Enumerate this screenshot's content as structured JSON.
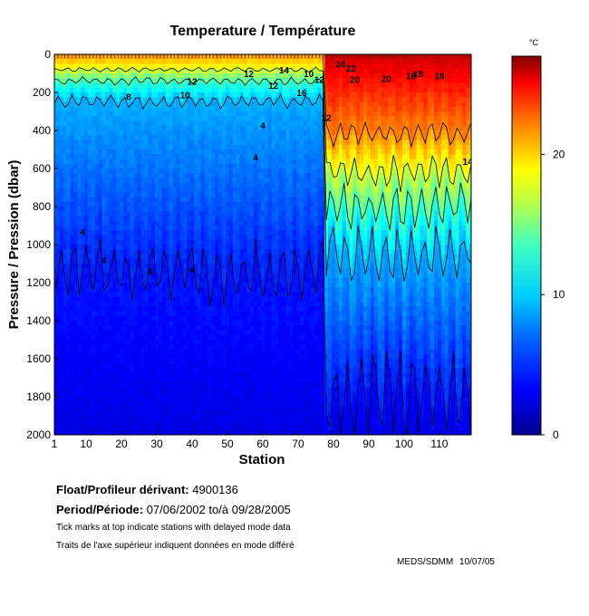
{
  "chart_data": {
    "type": "heatmap",
    "title": "Temperature / Température",
    "xlabel": "Station",
    "ylabel": "Pressure / Pression (dbar)",
    "xlim": [
      1,
      119
    ],
    "ylim": [
      2000,
      0
    ],
    "x_ticks": [
      1,
      10,
      20,
      30,
      40,
      50,
      60,
      70,
      80,
      90,
      100,
      110
    ],
    "y_ticks": [
      0,
      200,
      400,
      600,
      800,
      1000,
      1200,
      1400,
      1600,
      1800,
      2000
    ],
    "colorbar": {
      "unit": "°C",
      "range": [
        0,
        27
      ],
      "ticks": [
        0,
        10,
        20
      ],
      "colormap": [
        "#00008f",
        "#0000ff",
        "#0080ff",
        "#00ffff",
        "#80ff80",
        "#ffff00",
        "#ff8000",
        "#ff0000",
        "#800000"
      ]
    },
    "contour_labels": [
      {
        "text": "4",
        "station": 9,
        "pressure": 950
      },
      {
        "text": "4",
        "station": 15,
        "pressure": 1100
      },
      {
        "text": "4",
        "station": 28,
        "pressure": 1160
      },
      {
        "text": "4",
        "station": 40,
        "pressure": 1150
      },
      {
        "text": "4",
        "station": 58,
        "pressure": 560
      },
      {
        "text": "4",
        "station": 60,
        "pressure": 390
      },
      {
        "text": "8",
        "station": 22,
        "pressure": 240
      },
      {
        "text": "10",
        "station": 38,
        "pressure": 230
      },
      {
        "text": "12",
        "station": 40,
        "pressure": 160
      },
      {
        "text": "12",
        "station": 56,
        "pressure": 120
      },
      {
        "text": "12",
        "station": 63,
        "pressure": 180
      },
      {
        "text": "14",
        "station": 66,
        "pressure": 100
      },
      {
        "text": "16",
        "station": 71,
        "pressure": 220
      },
      {
        "text": "10",
        "station": 73,
        "pressure": 120
      },
      {
        "text": "12",
        "station": 76,
        "pressure": 150
      },
      {
        "text": "12",
        "station": 78,
        "pressure": 350
      },
      {
        "text": "22",
        "station": 85,
        "pressure": 90
      },
      {
        "text": "20",
        "station": 86,
        "pressure": 150
      },
      {
        "text": "20",
        "station": 95,
        "pressure": 145
      },
      {
        "text": "18",
        "station": 102,
        "pressure": 130
      },
      {
        "text": "18",
        "station": 104,
        "pressure": 120
      },
      {
        "text": "18",
        "station": 110,
        "pressure": 130
      },
      {
        "text": "24",
        "station": 82,
        "pressure": 70
      },
      {
        "text": "14",
        "station": 118,
        "pressure": 580
      }
    ],
    "isotherm_depths": [
      {
        "temp": 4,
        "western_dbar": 1150,
        "eastern_dbar": 1800
      },
      {
        "temp": 8,
        "western_dbar": 250,
        "eastern_dbar": 1050
      },
      {
        "temp": 12,
        "western_dbar": 140,
        "eastern_dbar": 800
      },
      {
        "temp": 16,
        "western_dbar": 80,
        "eastern_dbar": 620
      },
      {
        "temp": 20,
        "western_dbar": 0,
        "eastern_dbar": 420
      }
    ],
    "front_station": 78
  },
  "info": {
    "float_label": "Float/Profileur dérivant:",
    "float_id": "4900136",
    "period_label": "Period/Période:",
    "period_start": "07/06/2002",
    "period_sep": "to/à",
    "period_end": "09/28/2005",
    "note_en": "Tick marks at top indicate stations with delayed mode data",
    "note_fr": "Traits de l'axe supérieur indiquent données en mode différé",
    "credit_org": "MEDS/SDMM",
    "credit_date": "10/07/05"
  }
}
